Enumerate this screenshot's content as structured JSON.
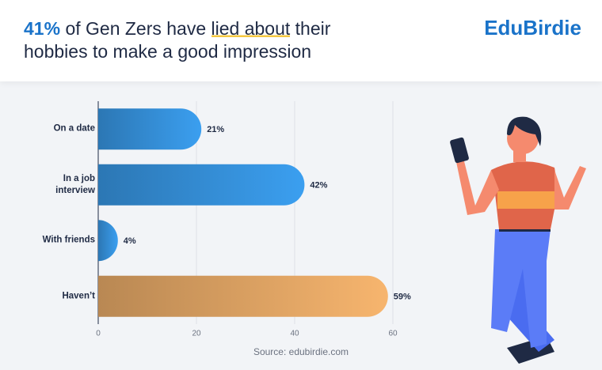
{
  "chart_data": {
    "type": "bar",
    "orientation": "horizontal",
    "title": {
      "highlight": "41%",
      "lead": "of Gen Zers have",
      "underlined": "lied about",
      "rest": "their hobbies to make a good impression"
    },
    "brand": "EduBirdie",
    "source": "Source: edubirdie.com",
    "categories": [
      "On a date",
      "In a job interview",
      "With friends",
      "Haven’t"
    ],
    "values": [
      21,
      42,
      4,
      59
    ],
    "value_labels": [
      "21%",
      "42%",
      "4%",
      "59%"
    ],
    "colors": [
      "#3b9ff0",
      "#3b9ff0",
      "#3b9ff0",
      "#f7b56e"
    ],
    "xlim": [
      0,
      60
    ],
    "xticks": [
      0,
      20,
      40,
      60
    ],
    "grid": true
  }
}
